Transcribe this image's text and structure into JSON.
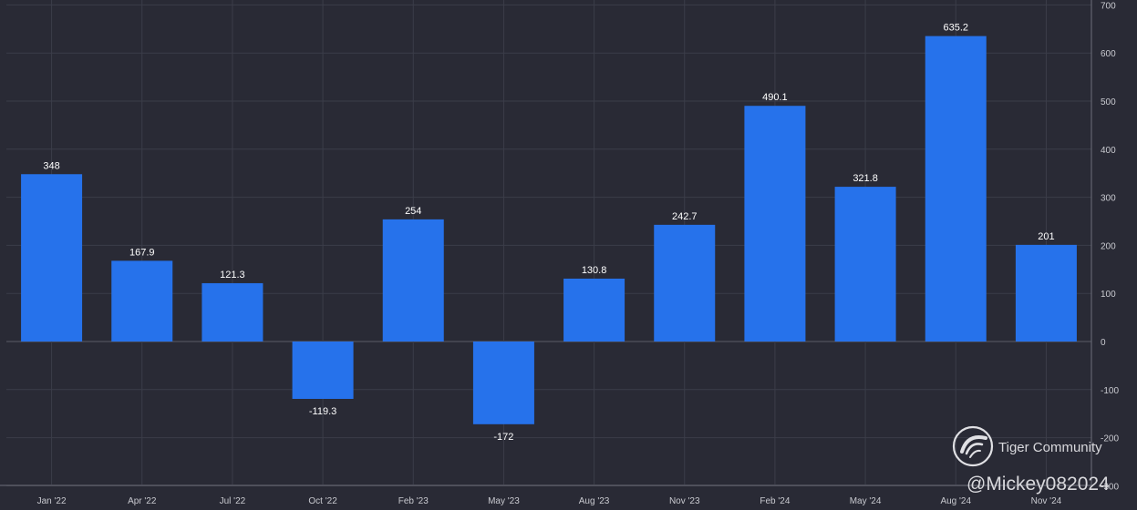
{
  "chart_data": {
    "type": "bar",
    "categories": [
      "Jan '22",
      "Apr '22",
      "Jul '22",
      "Oct '22",
      "Feb '23",
      "May '23",
      "Aug '23",
      "Nov '23",
      "Feb '24",
      "May '24",
      "Aug '24",
      "Nov '24"
    ],
    "values": [
      348,
      167.9,
      121.3,
      -119.3,
      254,
      -172,
      130.8,
      242.7,
      490.1,
      321.8,
      635.2,
      201
    ],
    "data_labels": [
      "348",
      "167.9",
      "121.3",
      "-119.3",
      "254",
      "-172",
      "130.8",
      "242.7",
      "490.1",
      "321.8",
      "635.2",
      "201"
    ],
    "title": "",
    "xlabel": "",
    "ylabel": "",
    "ylim": [
      -300,
      700
    ],
    "y_ticks": [
      -300,
      -200,
      -100,
      0,
      100,
      200,
      300,
      400,
      500,
      600,
      700
    ],
    "y_tick_labels": [
      "-300",
      "-200",
      "-100",
      "0",
      "100",
      "200",
      "300",
      "400",
      "500",
      "600",
      "700"
    ],
    "y_axis_position": "right",
    "grid": true,
    "legend": "none",
    "colors": {
      "background": "#292a35",
      "bar": "#2672eb",
      "grid": "#3b3d49",
      "text": "#c9cad0",
      "label": "#ffffff"
    }
  },
  "watermark": {
    "brand": "Tiger Community",
    "handle": "@Mickey082024",
    "logo_icon": "tiger-logo-icon"
  }
}
